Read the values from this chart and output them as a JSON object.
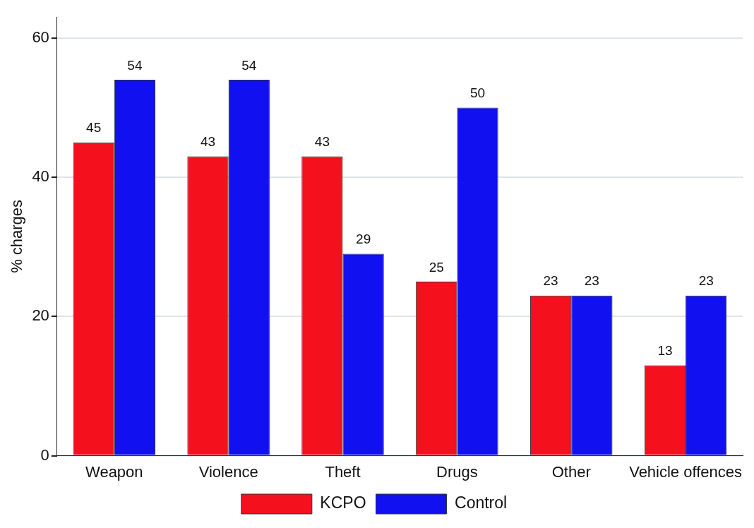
{
  "chart_data": {
    "type": "bar",
    "ylabel": "% charges",
    "categories": [
      "Weapon",
      "Violence",
      "Theft",
      "Drugs",
      "Other",
      "Vehicle offences"
    ],
    "series": [
      {
        "name": "KCPO",
        "color": "#f4101c",
        "values": [
          45,
          43,
          43,
          25,
          23,
          13
        ]
      },
      {
        "name": "Control",
        "color": "#1010f0",
        "values": [
          54,
          54,
          29,
          50,
          23,
          23
        ]
      }
    ],
    "ylim": [
      0,
      63
    ],
    "yticks": [
      0,
      20,
      40,
      60
    ],
    "grid": "y",
    "legend": "bottom",
    "data_labels": true
  }
}
